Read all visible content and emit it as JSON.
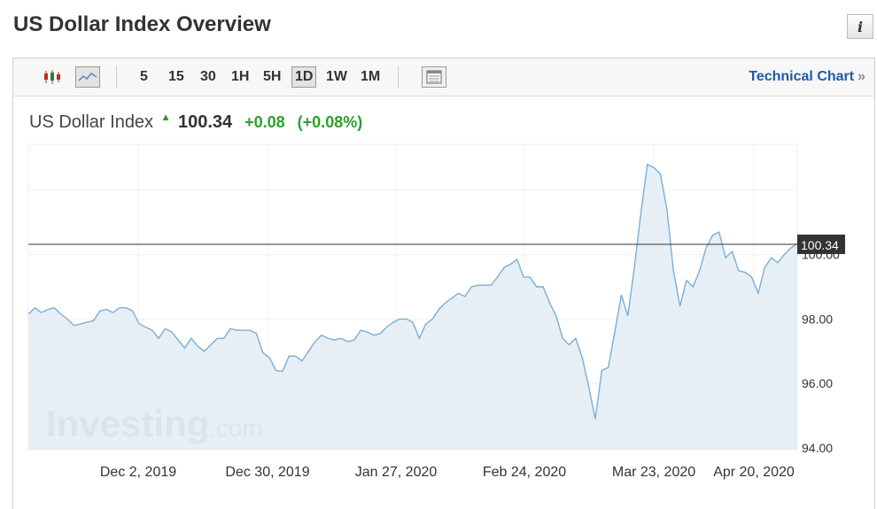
{
  "page": {
    "title": "US Dollar Index Overview",
    "info_icon": "info-icon"
  },
  "toolbar": {
    "icons": [
      "candlestick-icon",
      "line-chart-icon",
      "layout-icon"
    ],
    "timeframes": [
      "5",
      "15",
      "30",
      "1H",
      "5H",
      "1D",
      "1W",
      "1M"
    ],
    "active_timeframe": "1D",
    "technical_chart_label": "Technical Chart",
    "technical_chart_arrow": "»"
  },
  "quote": {
    "name": "US Dollar Index",
    "direction_icon": "up-arrow-icon",
    "last": "100.34",
    "change": "+0.08",
    "change_pct": "(+0.08%)",
    "up_color": "#2e9e2e"
  },
  "watermark": {
    "brand": "Investing",
    "suffix": ".com"
  },
  "chart_data": {
    "type": "area",
    "x_ticks": [
      "Dec 2, 2019",
      "Dec 30, 2019",
      "Jan 27, 2020",
      "Feb 24, 2020",
      "Mar 23, 2020",
      "Apr 20, 2020"
    ],
    "y_ticks": [
      "94.00",
      "96.00",
      "98.00",
      "100.00"
    ],
    "ylim": [
      94,
      103
    ],
    "current_value": 100.34,
    "current_label": "100.34",
    "x_units": "trading days (approx.), first point ≈ Nov 13, 2019",
    "series": [
      {
        "values": [
          98.15,
          98.35,
          98.2,
          98.3,
          98.35,
          98.15,
          98.0,
          97.8,
          97.85,
          97.9,
          97.95,
          98.25,
          98.3,
          98.2,
          98.35,
          98.35,
          98.25,
          97.85,
          97.75,
          97.65,
          97.4,
          97.7,
          97.6,
          97.35,
          97.1,
          97.4,
          97.15,
          97.0,
          97.2,
          97.4,
          97.4,
          97.7,
          97.65,
          97.65,
          97.65,
          97.55,
          96.95,
          96.8,
          96.4,
          96.38,
          96.85,
          96.85,
          96.7,
          97.0,
          97.3,
          97.5,
          97.4,
          97.35,
          97.4,
          97.3,
          97.35,
          97.65,
          97.6,
          97.5,
          97.55,
          97.75,
          97.9,
          98.0,
          98.0,
          97.9,
          97.4,
          97.85,
          98.0,
          98.3,
          98.5,
          98.65,
          98.8,
          98.7,
          99.0,
          99.05,
          99.05,
          99.05,
          99.3,
          99.6,
          99.7,
          99.85,
          99.3,
          99.3,
          99.0,
          99.0,
          98.5,
          98.1,
          97.4,
          97.2,
          97.4,
          96.8,
          95.9,
          94.9,
          96.4,
          96.5,
          97.6,
          98.75,
          98.1,
          99.6,
          101.3,
          102.8,
          102.7,
          102.5,
          101.4,
          99.5,
          98.4,
          99.2,
          99.0,
          99.5,
          100.2,
          100.6,
          100.7,
          99.9,
          100.1,
          99.5,
          99.45,
          99.3,
          98.8,
          99.6,
          99.9,
          99.75,
          100.0,
          100.2,
          100.34
        ]
      }
    ],
    "line_color": "#7aaed6",
    "fill_color": "#e3edf5"
  }
}
